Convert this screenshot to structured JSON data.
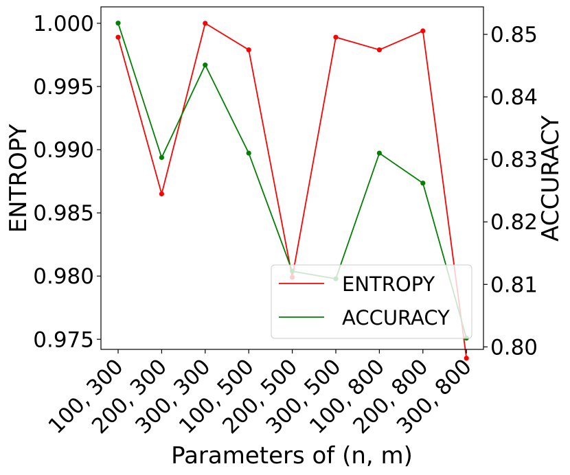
{
  "chart_data": {
    "type": "line",
    "categories": [
      "100, 300",
      "200, 300",
      "300, 300",
      "100, 500",
      "200, 500",
      "300, 500",
      "100, 800",
      "200, 800",
      "300, 800"
    ],
    "xlabel": "Parameters of (n, m)",
    "ylabel_left": "ENTROPY",
    "ylabel_right": "ACCURACY",
    "ylim_left": [
      0.9742,
      1.0013
    ],
    "ylim_right": [
      0.7996,
      0.8544
    ],
    "yticks_left": [
      "0.975",
      "0.980",
      "0.985",
      "0.990",
      "0.995",
      "1.000"
    ],
    "yticks_right": [
      "0.80",
      "0.81",
      "0.82",
      "0.83",
      "0.84",
      "0.85"
    ],
    "grid": false,
    "legend_position": "lower-right",
    "series": [
      {
        "name": "ENTROPY",
        "axis": "left",
        "color": "#ff0000",
        "values": [
          0.9989,
          0.9865,
          1.0,
          0.9979,
          0.9799,
          0.9989,
          0.9979,
          0.9994,
          0.9735
        ]
      },
      {
        "name": "ACCURACY",
        "axis": "right",
        "color": "#008000",
        "values": [
          0.8518,
          0.8303,
          0.8451,
          0.831,
          0.8121,
          0.8109,
          0.831,
          0.8262,
          0.8014
        ]
      }
    ]
  }
}
